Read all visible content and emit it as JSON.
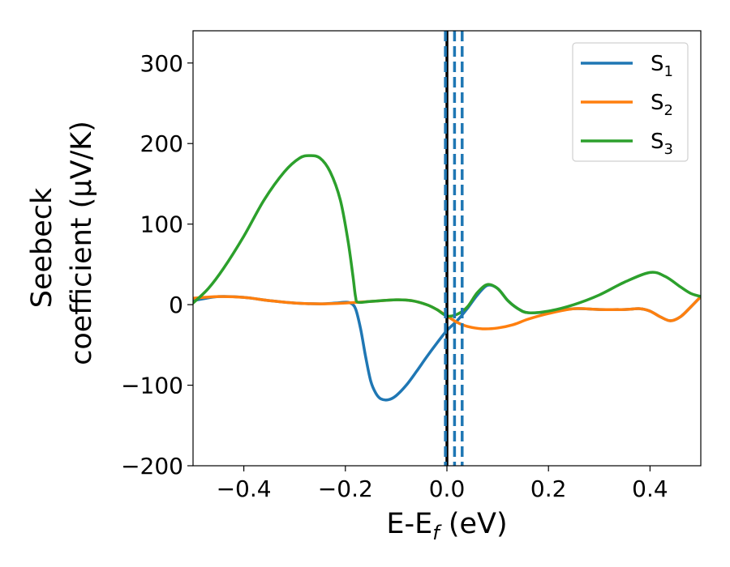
{
  "chart_data": {
    "type": "line",
    "xlabel": "E-E",
    "xlabel_sub": "f",
    "xlabel_unit": " (eV)",
    "ylabel_line1": "Seebeck",
    "ylabel_line2": "coefficient  (μV/K)",
    "xlim": [
      -0.5,
      0.5
    ],
    "ylim": [
      -200,
      340
    ],
    "xticks": [
      -0.4,
      -0.2,
      0.0,
      0.2,
      0.4
    ],
    "xtick_labels": [
      "−0.4",
      "−0.2",
      "0.0",
      "0.2",
      "0.4"
    ],
    "yticks": [
      -200,
      -100,
      0,
      100,
      200,
      300
    ],
    "ytick_labels": [
      "−200",
      "−100",
      "0",
      "100",
      "200",
      "300"
    ],
    "grid": false,
    "legend": "top-right",
    "vlines": [
      {
        "x": 0.0,
        "style": "solid",
        "color": "#000000"
      },
      {
        "x": -0.003,
        "style": "dashed",
        "color": "#1f77b4"
      },
      {
        "x": 0.015,
        "style": "dashed",
        "color": "#1f77b4"
      },
      {
        "x": 0.03,
        "style": "dashed",
        "color": "#1f77b4"
      }
    ],
    "series": [
      {
        "name": "S",
        "sub": "1",
        "color": "#1f77b4",
        "points": [
          [
            -0.5,
            5
          ],
          [
            -0.45,
            10
          ],
          [
            -0.4,
            9
          ],
          [
            -0.35,
            5
          ],
          [
            -0.3,
            2
          ],
          [
            -0.25,
            1
          ],
          [
            -0.22,
            2
          ],
          [
            -0.2,
            3
          ],
          [
            -0.19,
            2
          ],
          [
            -0.18,
            -5
          ],
          [
            -0.17,
            -30
          ],
          [
            -0.16,
            -65
          ],
          [
            -0.15,
            -95
          ],
          [
            -0.14,
            -110
          ],
          [
            -0.13,
            -117
          ],
          [
            -0.115,
            -118
          ],
          [
            -0.1,
            -113
          ],
          [
            -0.08,
            -100
          ],
          [
            -0.06,
            -83
          ],
          [
            -0.04,
            -65
          ],
          [
            -0.02,
            -48
          ],
          [
            0.0,
            -32
          ],
          [
            0.02,
            -20
          ],
          [
            0.04,
            -5
          ],
          [
            0.06,
            12
          ],
          [
            0.08,
            24
          ],
          [
            0.1,
            20
          ],
          [
            0.12,
            5
          ],
          [
            0.14,
            -5
          ],
          [
            0.16,
            -10
          ],
          [
            0.2,
            -9
          ],
          [
            0.25,
            -5
          ],
          [
            0.3,
            -6
          ],
          [
            0.35,
            -6
          ],
          [
            0.38,
            -5
          ],
          [
            0.4,
            -8
          ],
          [
            0.42,
            -15
          ],
          [
            0.44,
            -20
          ],
          [
            0.46,
            -15
          ],
          [
            0.48,
            -3
          ],
          [
            0.5,
            10
          ]
        ]
      },
      {
        "name": "S",
        "sub": "2",
        "color": "#ff7f0e",
        "points": [
          [
            -0.5,
            8
          ],
          [
            -0.45,
            10
          ],
          [
            -0.4,
            9
          ],
          [
            -0.35,
            5
          ],
          [
            -0.3,
            2
          ],
          [
            -0.25,
            1
          ],
          [
            -0.2,
            2
          ],
          [
            -0.15,
            4
          ],
          [
            -0.1,
            6
          ],
          [
            -0.07,
            5
          ],
          [
            -0.04,
            0
          ],
          [
            -0.02,
            -6
          ],
          [
            0.0,
            -14
          ],
          [
            0.02,
            -22
          ],
          [
            0.04,
            -27
          ],
          [
            0.07,
            -30
          ],
          [
            0.1,
            -29
          ],
          [
            0.13,
            -25
          ],
          [
            0.16,
            -18
          ],
          [
            0.2,
            -11
          ],
          [
            0.25,
            -5
          ],
          [
            0.3,
            -6
          ],
          [
            0.35,
            -6
          ],
          [
            0.38,
            -5
          ],
          [
            0.4,
            -8
          ],
          [
            0.42,
            -15
          ],
          [
            0.44,
            -20
          ],
          [
            0.46,
            -15
          ],
          [
            0.48,
            -3
          ],
          [
            0.5,
            10
          ]
        ]
      },
      {
        "name": "S",
        "sub": "3",
        "color": "#2ca02c",
        "points": [
          [
            -0.5,
            2
          ],
          [
            -0.47,
            20
          ],
          [
            -0.44,
            45
          ],
          [
            -0.4,
            85
          ],
          [
            -0.36,
            130
          ],
          [
            -0.32,
            165
          ],
          [
            -0.29,
            182
          ],
          [
            -0.27,
            185
          ],
          [
            -0.25,
            182
          ],
          [
            -0.23,
            165
          ],
          [
            -0.21,
            130
          ],
          [
            -0.195,
            80
          ],
          [
            -0.185,
            35
          ],
          [
            -0.18,
            10
          ],
          [
            -0.175,
            3
          ],
          [
            -0.15,
            4
          ],
          [
            -0.1,
            6
          ],
          [
            -0.07,
            5
          ],
          [
            -0.04,
            0
          ],
          [
            -0.02,
            -6
          ],
          [
            0.0,
            -14
          ],
          [
            0.02,
            -12
          ],
          [
            0.04,
            -3
          ],
          [
            0.06,
            15
          ],
          [
            0.08,
            25
          ],
          [
            0.1,
            20
          ],
          [
            0.12,
            5
          ],
          [
            0.14,
            -5
          ],
          [
            0.16,
            -10
          ],
          [
            0.2,
            -8
          ],
          [
            0.25,
            0
          ],
          [
            0.3,
            12
          ],
          [
            0.35,
            28
          ],
          [
            0.4,
            40
          ],
          [
            0.43,
            35
          ],
          [
            0.46,
            22
          ],
          [
            0.48,
            14
          ],
          [
            0.5,
            10
          ]
        ]
      }
    ]
  }
}
